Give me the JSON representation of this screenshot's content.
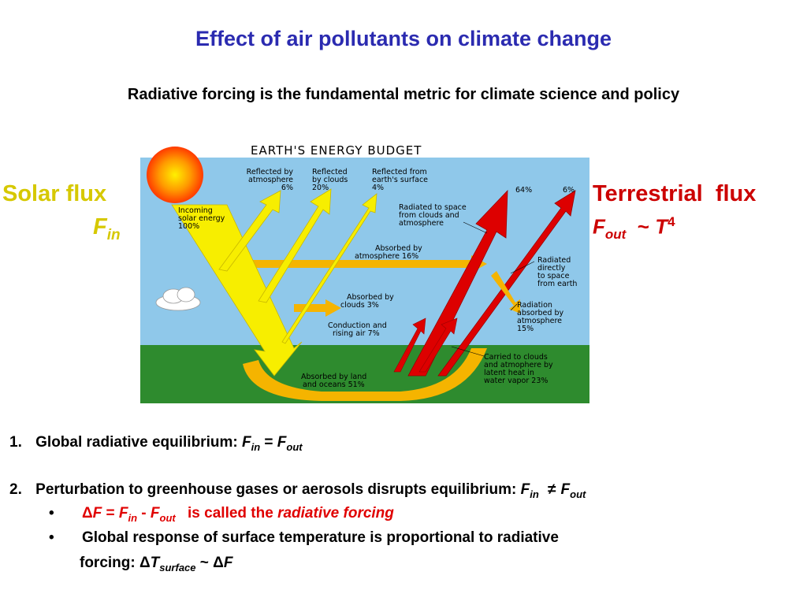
{
  "title": "Effect of air pollutants on climate change",
  "subtitle": "Radiative forcing is the fundamental metric for climate science and policy",
  "solar": {
    "label": "Solar flux",
    "symbol": "F",
    "sub": "in"
  },
  "terrestrial": {
    "label": "Terrestrial  flux",
    "symbol": "F",
    "sub": "out",
    "tilde": "~",
    "t": "T",
    "exp": "4"
  },
  "diagram": {
    "heading": "EARTH'S ENERGY BUDGET",
    "incoming": [
      "Incoming",
      "solar energy",
      "100%"
    ],
    "refl_atm": [
      "Reflected by",
      "atmosphere",
      "6%"
    ],
    "refl_clouds": [
      "Reflected",
      "by clouds",
      "20%"
    ],
    "refl_surface": [
      "Reflected from",
      "earth's surface",
      "4%"
    ],
    "pct_64": "64%",
    "pct_6": "6%",
    "rad_space_clouds": [
      "Radiated to space",
      "from clouds and",
      "atmosphere"
    ],
    "abs_atm": [
      "Absorbed by",
      "atmosphere 16%"
    ],
    "rad_direct": [
      "Radiated",
      "directly",
      "to space",
      "from earth"
    ],
    "abs_clouds": [
      "Absorbed by",
      "clouds 3%"
    ],
    "rad_abs_atm": [
      "Radiation",
      "absorbed by",
      "atmosphere",
      "15%"
    ],
    "conduction": [
      "Conduction and",
      "rising air 7%"
    ],
    "latent": [
      "Carried to clouds",
      "and atmophere by",
      "latent heat in",
      "water vapor 23%"
    ],
    "abs_land": [
      "Absorbed by land",
      "and oceans 51%"
    ]
  },
  "colors": {
    "title": "#2b2bb0",
    "solar": "#d6c800",
    "terrestrial": "#cc0000",
    "sky": "#8fc8ea",
    "ground": "#2e8b2e",
    "sun_arrow": "#f7ee00",
    "earth_arrow": "#dd0000",
    "absorbed": "#f5b400"
  },
  "list": {
    "item1": {
      "num": "1.",
      "text": "Global radiative equilibrium: ",
      "f1": "F",
      "s1": "in",
      "eq": " = ",
      "f2": "F",
      "s2": "out"
    },
    "item2": {
      "num": "2.",
      "text": "Perturbation to greenhouse gases or aerosols disrupts equilibrium: ",
      "f1": "F",
      "s1": "in",
      "neq": "≠",
      "f2": "F",
      "s2": "out"
    },
    "bullet1": {
      "bullet": "•",
      "delta": "Δ",
      "f": "F",
      "eq": " = ",
      "f1": "F",
      "s1": "in",
      "minus": " - ",
      "f2": "F",
      "s2": "out",
      "text": "is called the ",
      "italic": "radiative forcing"
    },
    "bullet2": {
      "bullet": "•",
      "line1": "Global response of surface temperature is proportional to radiative",
      "line2a": "forcing:  ",
      "delta": "Δ",
      "t": "T",
      "s": "surface",
      "tilde": " ~ ",
      "delta2": "Δ",
      "f": "F"
    }
  }
}
